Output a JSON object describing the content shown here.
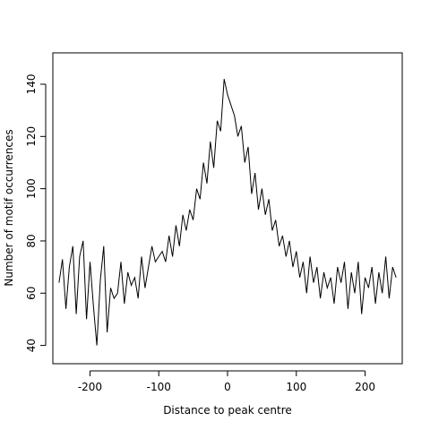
{
  "chart_data": {
    "type": "line",
    "title": "",
    "xlabel": "Distance to peak centre",
    "ylabel": "Number of motif occurrences",
    "xlim": [
      -254,
      254
    ],
    "ylim": [
      33,
      152
    ],
    "xticks": [
      -200,
      -100,
      0,
      100,
      200
    ],
    "yticks": [
      40,
      60,
      80,
      100,
      120,
      140
    ],
    "xtick_labels": [
      "-200",
      "-100",
      "0",
      "100",
      "200"
    ],
    "ytick_labels": [
      "40",
      "60",
      "80",
      "100",
      "120",
      "140"
    ],
    "grid": false,
    "legend": "none",
    "series": [
      {
        "x": [
          -245,
          -240,
          -235,
          -230,
          -225,
          -220,
          -215,
          -210,
          -205,
          -200,
          -195,
          -190,
          -185,
          -180,
          -175,
          -170,
          -165,
          -160,
          -155,
          -150,
          -145,
          -140,
          -135,
          -130,
          -125,
          -120,
          -115,
          -110,
          -105,
          -100,
          -95,
          -90,
          -85,
          -80,
          -75,
          -70,
          -65,
          -60,
          -55,
          -50,
          -45,
          -40,
          -35,
          -30,
          -25,
          -20,
          -15,
          -10,
          -5,
          0,
          5,
          10,
          15,
          20,
          25,
          30,
          35,
          40,
          45,
          50,
          55,
          60,
          65,
          70,
          75,
          80,
          85,
          90,
          95,
          100,
          105,
          110,
          115,
          120,
          125,
          130,
          135,
          140,
          145,
          150,
          155,
          160,
          165,
          170,
          175,
          180,
          185,
          190,
          195,
          200,
          205,
          210,
          215,
          220,
          225,
          230,
          235,
          240,
          245
        ],
        "values": [
          64,
          73,
          54,
          70,
          78,
          52,
          74,
          80,
          50,
          72,
          55,
          40,
          65,
          78,
          45,
          62,
          58,
          60,
          72,
          56,
          68,
          63,
          66,
          58,
          74,
          62,
          70,
          78,
          72,
          74,
          76,
          72,
          82,
          74,
          86,
          78,
          90,
          84,
          92,
          88,
          100,
          96,
          110,
          102,
          118,
          108,
          126,
          122,
          142,
          136,
          132,
          128,
          120,
          124,
          110,
          116,
          98,
          106,
          92,
          100,
          90,
          96,
          84,
          88,
          78,
          82,
          74,
          80,
          70,
          76,
          66,
          72,
          60,
          74,
          64,
          70,
          58,
          68,
          62,
          66,
          56,
          70,
          64,
          72,
          54,
          68,
          60,
          72,
          52,
          66,
          62,
          70,
          56,
          68,
          60,
          74,
          58,
          70,
          66
        ]
      }
    ]
  }
}
